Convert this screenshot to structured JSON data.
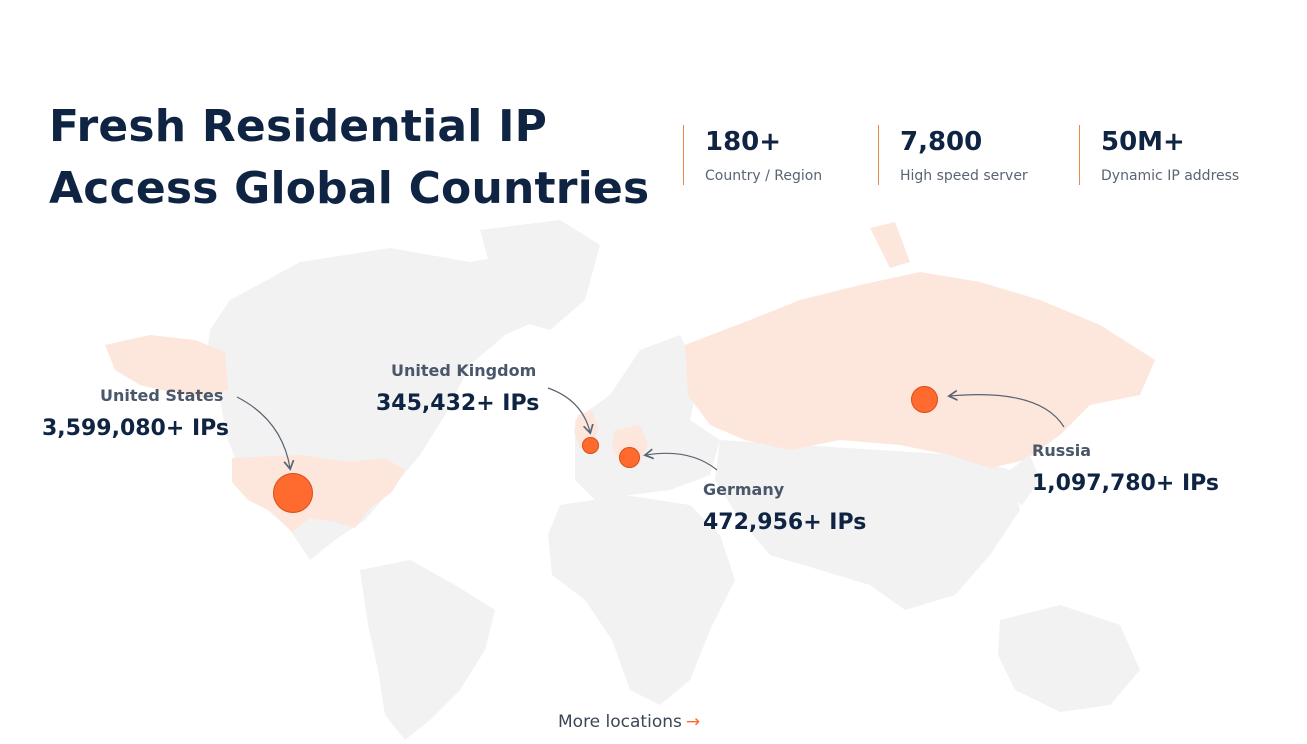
{
  "headline": {
    "line1": "Fresh Residential IP",
    "line2": "Access Global Countries"
  },
  "stats": [
    {
      "value": "180+",
      "label": "Country / Region"
    },
    {
      "value": "7,800",
      "label": "High speed server"
    },
    {
      "value": "50M+",
      "label": "Dynamic IP address"
    }
  ],
  "locations": [
    {
      "name": "United States",
      "ips": "3,599,080+ IPs"
    },
    {
      "name": "United Kingdom",
      "ips": "345,432+ IPs"
    },
    {
      "name": "Germany",
      "ips": "472,956+ IPs"
    },
    {
      "name": "Russia",
      "ips": "1,097,780+ IPs"
    }
  ],
  "more_link": {
    "label": "More locations",
    "icon": "arrow-right-icon",
    "arrow": "→"
  },
  "colors": {
    "accent": "#ff6a2f",
    "highlight_land": "#fde6dc",
    "land": "#f2f2f2",
    "heading": "#0f2342"
  }
}
